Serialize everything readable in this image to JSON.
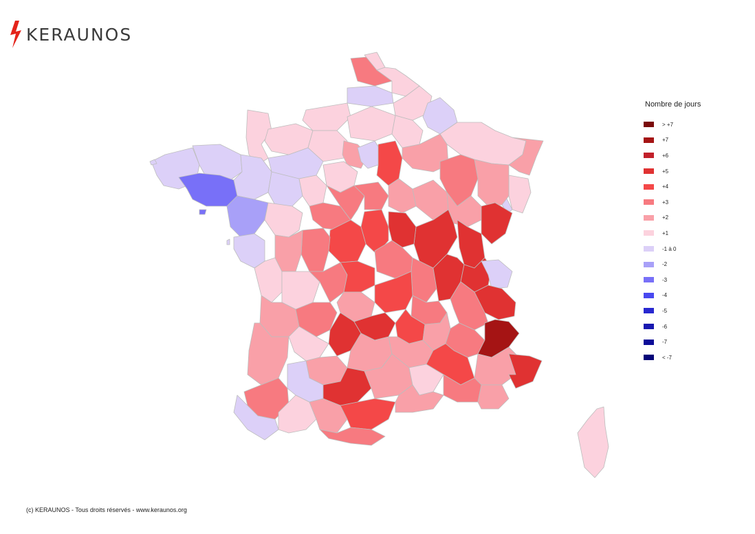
{
  "brand": {
    "name": "KERAUNOS",
    "bolt_color": "#e4241b"
  },
  "legend": {
    "title": "Nombre de jours",
    "items": [
      {
        "label": "> +7",
        "color": "#7a0a0a"
      },
      {
        "label": "+7",
        "color": "#a51414"
      },
      {
        "label": "+6",
        "color": "#c2202a"
      },
      {
        "label": "+5",
        "color": "#e03232"
      },
      {
        "label": "+4",
        "color": "#f44848"
      },
      {
        "label": "+3",
        "color": "#f77a80"
      },
      {
        "label": "+2",
        "color": "#f9a0a8"
      },
      {
        "label": "+1",
        "color": "#fcd2de"
      },
      {
        "label": "-1 à 0",
        "color": "#dcd0f8"
      },
      {
        "label": "-2",
        "color": "#a8a0f8"
      },
      {
        "label": "-3",
        "color": "#7870f8"
      },
      {
        "label": "-4",
        "color": "#4848f0"
      },
      {
        "label": "-5",
        "color": "#2828d0"
      },
      {
        "label": "-6",
        "color": "#1818b0"
      },
      {
        "label": "-7",
        "color": "#0c0c98"
      },
      {
        "label": "< -7",
        "color": "#050578"
      }
    ]
  },
  "footer": {
    "copyright": "(c) KERAUNOS - Tous droits réservés - www.keraunos.org"
  }
}
